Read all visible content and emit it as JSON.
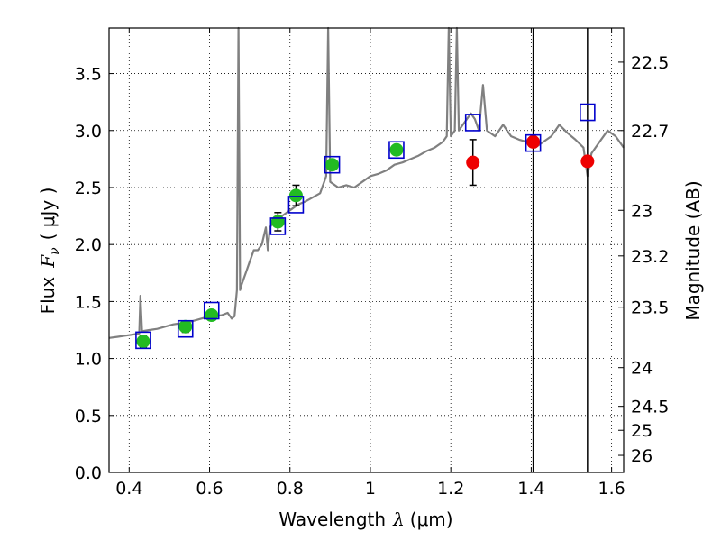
{
  "chart_data": {
    "type": "scatter",
    "xlabel_text": "Wavelength",
    "xlabel_symbol": "λ",
    "xlabel_unit": "(μm)",
    "ylabel_text": "Flux",
    "ylabel_symbol": "F",
    "ylabel_subscript": "ν",
    "ylabel_unit": "( μJy )",
    "y2label": "Magnitude (AB)",
    "xlim": [
      0.35,
      1.63
    ],
    "ylim": [
      0.0,
      3.9
    ],
    "grid": true,
    "x_ticks": [
      0.4,
      0.6,
      0.8,
      1.0,
      1.2,
      1.4,
      1.6
    ],
    "x_tick_labels": [
      "0.4",
      "0.6",
      "0.8",
      "1",
      "1.2",
      "1.4",
      "1.6"
    ],
    "y_ticks": [
      0.0,
      0.5,
      1.0,
      1.5,
      2.0,
      2.5,
      3.0,
      3.5
    ],
    "y_tick_labels": [
      "0.0",
      "0.5",
      "1.0",
      "1.5",
      "2.0",
      "2.5",
      "3.0",
      "3.5"
    ],
    "y2_ticks": [
      {
        "label": "22.5",
        "flux": 3.6
      },
      {
        "label": "22.7",
        "flux": 3.0
      },
      {
        "label": "23",
        "flux": 2.3
      },
      {
        "label": "23.2",
        "flux": 1.9
      },
      {
        "label": "23.5",
        "flux": 1.45
      },
      {
        "label": "24",
        "flux": 0.92
      },
      {
        "label": "24.5",
        "flux": 0.58
      },
      {
        "label": "25",
        "flux": 0.37
      },
      {
        "label": "26",
        "flux": 0.15
      }
    ],
    "vertical_lines": [
      1.405,
      1.54
    ],
    "series": [
      {
        "kind": "spectrum",
        "color": "#808080",
        "points": [
          [
            0.35,
            1.18
          ],
          [
            0.37,
            1.19
          ],
          [
            0.39,
            1.2
          ],
          [
            0.41,
            1.21
          ],
          [
            0.425,
            1.22
          ],
          [
            0.428,
            1.55
          ],
          [
            0.432,
            1.24
          ],
          [
            0.45,
            1.25
          ],
          [
            0.47,
            1.26
          ],
          [
            0.49,
            1.28
          ],
          [
            0.51,
            1.3
          ],
          [
            0.53,
            1.31
          ],
          [
            0.55,
            1.32
          ],
          [
            0.57,
            1.34
          ],
          [
            0.59,
            1.36
          ],
          [
            0.61,
            1.37
          ],
          [
            0.63,
            1.38
          ],
          [
            0.645,
            1.4
          ],
          [
            0.655,
            1.35
          ],
          [
            0.662,
            1.37
          ],
          [
            0.668,
            1.6
          ],
          [
            0.672,
            3.9
          ],
          [
            0.676,
            1.6
          ],
          [
            0.68,
            1.65
          ],
          [
            0.69,
            1.75
          ],
          [
            0.7,
            1.85
          ],
          [
            0.71,
            1.95
          ],
          [
            0.72,
            1.95
          ],
          [
            0.73,
            2.0
          ],
          [
            0.74,
            2.15
          ],
          [
            0.745,
            1.95
          ],
          [
            0.75,
            2.15
          ],
          [
            0.76,
            2.2
          ],
          [
            0.77,
            2.22
          ],
          [
            0.78,
            2.25
          ],
          [
            0.8,
            2.3
          ],
          [
            0.82,
            2.35
          ],
          [
            0.84,
            2.38
          ],
          [
            0.86,
            2.42
          ],
          [
            0.875,
            2.45
          ],
          [
            0.88,
            2.5
          ],
          [
            0.885,
            2.55
          ],
          [
            0.89,
            2.6
          ],
          [
            0.895,
            3.9
          ],
          [
            0.9,
            2.55
          ],
          [
            0.92,
            2.5
          ],
          [
            0.94,
            2.52
          ],
          [
            0.96,
            2.5
          ],
          [
            0.98,
            2.55
          ],
          [
            1.0,
            2.6
          ],
          [
            1.02,
            2.62
          ],
          [
            1.04,
            2.65
          ],
          [
            1.06,
            2.7
          ],
          [
            1.08,
            2.72
          ],
          [
            1.1,
            2.75
          ],
          [
            1.12,
            2.78
          ],
          [
            1.14,
            2.82
          ],
          [
            1.16,
            2.85
          ],
          [
            1.18,
            2.9
          ],
          [
            1.19,
            2.95
          ],
          [
            1.195,
            3.9
          ],
          [
            1.2,
            2.95
          ],
          [
            1.21,
            3.0
          ],
          [
            1.215,
            3.9
          ],
          [
            1.22,
            3.0
          ],
          [
            1.24,
            3.1
          ],
          [
            1.25,
            3.15
          ],
          [
            1.26,
            3.1
          ],
          [
            1.27,
            3.0
          ],
          [
            1.28,
            3.4
          ],
          [
            1.29,
            3.0
          ],
          [
            1.31,
            2.95
          ],
          [
            1.33,
            3.05
          ],
          [
            1.35,
            2.95
          ],
          [
            1.37,
            2.92
          ],
          [
            1.39,
            2.9
          ],
          [
            1.41,
            2.85
          ],
          [
            1.43,
            2.9
          ],
          [
            1.45,
            2.95
          ],
          [
            1.47,
            3.05
          ],
          [
            1.49,
            2.98
          ],
          [
            1.51,
            2.92
          ],
          [
            1.53,
            2.85
          ],
          [
            1.54,
            2.6
          ],
          [
            1.55,
            2.8
          ],
          [
            1.57,
            2.9
          ],
          [
            1.59,
            3.0
          ],
          [
            1.61,
            2.95
          ],
          [
            1.63,
            2.85
          ]
        ]
      },
      {
        "kind": "model_squares",
        "color": "#0000cc",
        "points": [
          {
            "x": 0.435,
            "y": 1.16
          },
          {
            "x": 0.54,
            "y": 1.26
          },
          {
            "x": 0.605,
            "y": 1.42
          },
          {
            "x": 0.77,
            "y": 2.16
          },
          {
            "x": 0.815,
            "y": 2.35
          },
          {
            "x": 0.905,
            "y": 2.7
          },
          {
            "x": 1.065,
            "y": 2.83
          },
          {
            "x": 1.255,
            "y": 3.07
          },
          {
            "x": 1.405,
            "y": 2.89
          },
          {
            "x": 1.54,
            "y": 3.16
          }
        ]
      },
      {
        "kind": "green_obs",
        "color": "#22bb22",
        "points": [
          {
            "x": 0.435,
            "y": 1.15,
            "err": 0.05
          },
          {
            "x": 0.54,
            "y": 1.28,
            "err": 0.05
          },
          {
            "x": 0.605,
            "y": 1.38,
            "err": 0.04
          },
          {
            "x": 0.77,
            "y": 2.2,
            "err": 0.08
          },
          {
            "x": 0.815,
            "y": 2.43,
            "err": 0.09
          },
          {
            "x": 0.905,
            "y": 2.7,
            "err": 0.0
          },
          {
            "x": 1.065,
            "y": 2.83,
            "err": 0.0
          }
        ]
      },
      {
        "kind": "red_obs",
        "color": "#ee0000",
        "points": [
          {
            "x": 1.255,
            "y": 2.72,
            "err": 0.2
          },
          {
            "x": 1.405,
            "y": 2.9,
            "err": 0.0
          },
          {
            "x": 1.54,
            "y": 2.73,
            "err": 0.0
          }
        ]
      }
    ]
  }
}
